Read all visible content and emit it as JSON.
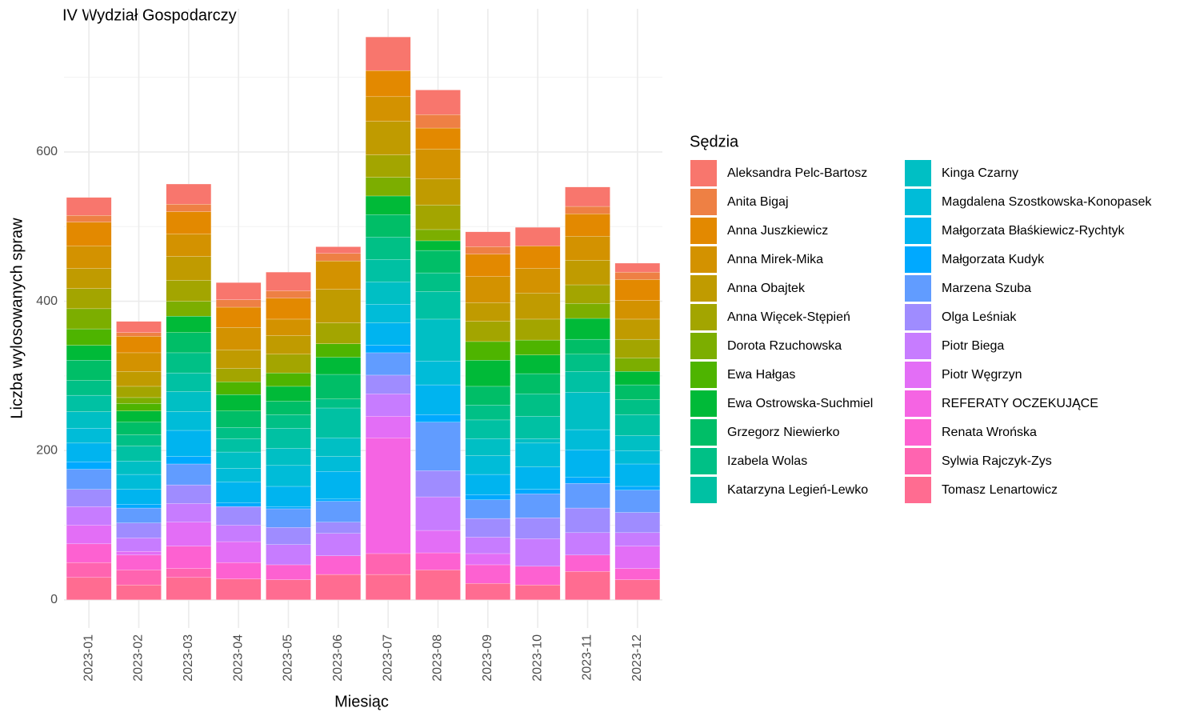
{
  "chart_data": {
    "type": "stacked_bar",
    "title": "IV Wydział Gospodarczy",
    "x_label": "Miesiąc",
    "y_label": "Liczba wylosowanych spraw",
    "legend_title": "Sędzia",
    "categories": [
      "2023-01",
      "2023-02",
      "2023-03",
      "2023-04",
      "2023-05",
      "2023-06",
      "2023-07",
      "2023-08",
      "2023-09",
      "2023-10",
      "2023-11",
      "2023-12"
    ],
    "ylim": [
      -37.7,
      791.7
    ],
    "yticks": [
      0,
      200,
      400,
      600
    ],
    "minor_yticks": [
      100,
      300,
      500,
      700
    ],
    "grid": true,
    "legend": "right",
    "series": [
      {
        "name": "Aleksandra Pelc-Bartosz",
        "color": "#F8766D",
        "values": [
          24,
          15,
          27,
          23,
          25,
          9,
          45,
          33,
          20,
          25,
          26,
          12
        ]
      },
      {
        "name": "Anita Bigaj",
        "color": "#EE8044",
        "values": [
          9,
          5,
          10,
          10,
          10,
          10,
          0,
          18,
          10,
          0,
          10,
          10
        ]
      },
      {
        "name": "Anna Juszkiewicz",
        "color": "#E38900",
        "values": [
          32,
          22,
          30,
          27,
          28,
          0,
          35,
          28,
          30,
          30,
          30,
          28
        ]
      },
      {
        "name": "Anna Mirek-Mika",
        "color": "#D39200",
        "values": [
          30,
          25,
          30,
          30,
          22,
          38,
          33,
          40,
          35,
          33,
          32,
          25
        ]
      },
      {
        "name": "Anna Obajtek",
        "color": "#C09B00",
        "values": [
          27,
          20,
          32,
          25,
          25,
          45,
          45,
          35,
          25,
          35,
          33,
          27
        ]
      },
      {
        "name": "Anna Więcek-Stępień",
        "color": "#A3A500",
        "values": [
          27,
          15,
          28,
          18,
          25,
          28,
          30,
          33,
          27,
          28,
          25,
          25
        ]
      },
      {
        "name": "Dorota Rzuchowska",
        "color": "#7CAE00",
        "values": [
          27,
          8,
          20,
          0,
          0,
          0,
          25,
          15,
          0,
          0,
          20,
          18
        ]
      },
      {
        "name": "Ewa Hałgas",
        "color": "#4EB400",
        "values": [
          22,
          10,
          0,
          17,
          18,
          18,
          0,
          0,
          25,
          20,
          0,
          0
        ]
      },
      {
        "name": "Ewa Ostrowska-Suchmiel",
        "color": "#00BA38",
        "values": [
          20,
          15,
          22,
          22,
          20,
          23,
          25,
          13,
          35,
          25,
          28,
          18
        ]
      },
      {
        "name": "Grzegorz Niewierko",
        "color": "#00BE67",
        "values": [
          27,
          17,
          27,
          22,
          18,
          33,
          30,
          30,
          25,
          27,
          20,
          20
        ]
      },
      {
        "name": "Izabela Wolas",
        "color": "#00C086",
        "values": [
          20,
          15,
          27,
          15,
          18,
          12,
          30,
          25,
          20,
          30,
          23,
          20
        ]
      },
      {
        "name": "Katarzyna Legień-Lewko",
        "color": "#00C1A3",
        "values": [
          22,
          20,
          25,
          18,
          27,
          40,
          30,
          37,
          25,
          30,
          28,
          28
        ]
      },
      {
        "name": "Kinga Czarny",
        "color": "#00BFC4",
        "values": [
          22,
          18,
          27,
          22,
          23,
          25,
          30,
          56,
          23,
          6,
          50,
          20
        ]
      },
      {
        "name": "Magdalena Szostkowska-Konopasek",
        "color": "#00BCD8",
        "values": [
          20,
          20,
          25,
          18,
          28,
          20,
          25,
          32,
          25,
          32,
          27,
          18
        ]
      },
      {
        "name": "Małgorzata Błaśkiewicz-Rychtyk",
        "color": "#00B4EF",
        "values": [
          25,
          20,
          35,
          28,
          27,
          37,
          30,
          40,
          27,
          30,
          37,
          30
        ]
      },
      {
        "name": "Małgorzata Kudyk",
        "color": "#00A9FF",
        "values": [
          10,
          5,
          10,
          5,
          3,
          3,
          10,
          10,
          7,
          6,
          8,
          5
        ]
      },
      {
        "name": "Marzena Szuba",
        "color": "#619CFF",
        "values": [
          27,
          20,
          28,
          0,
          25,
          28,
          30,
          65,
          25,
          32,
          33,
          30
        ]
      },
      {
        "name": "Olga Leśniak",
        "color": "#9F8CFF",
        "values": [
          23,
          20,
          25,
          25,
          23,
          15,
          25,
          35,
          25,
          28,
          33,
          27
        ]
      },
      {
        "name": "Piotr Biega",
        "color": "#C77CFF",
        "values": [
          25,
          18,
          25,
          22,
          27,
          30,
          30,
          45,
          22,
          37,
          30,
          18
        ]
      },
      {
        "name": "Piotr Węgrzyn",
        "color": "#E36EF6",
        "values": [
          25,
          5,
          32,
          28,
          0,
          0,
          29,
          30,
          15,
          0,
          0,
          30
        ]
      },
      {
        "name": "REFERATY OCZEKUJĄCE",
        "color": "#F564E3",
        "values": [
          0,
          0,
          0,
          0,
          0,
          0,
          155,
          0,
          0,
          0,
          0,
          0
        ]
      },
      {
        "name": "Renata Wrońska",
        "color": "#FD61D1",
        "values": [
          25,
          20,
          30,
          22,
          20,
          25,
          0,
          23,
          25,
          25,
          22,
          15
        ]
      },
      {
        "name": "Sylwia Rajczyk-Zys",
        "color": "#FF64B0",
        "values": [
          20,
          20,
          12,
          0,
          0,
          0,
          28,
          0,
          0,
          0,
          0,
          0
        ]
      },
      {
        "name": "Tomasz Lenartowicz",
        "color": "#FF6C91",
        "values": [
          30,
          20,
          30,
          28,
          27,
          34,
          34,
          40,
          22,
          20,
          38,
          27
        ]
      }
    ]
  }
}
